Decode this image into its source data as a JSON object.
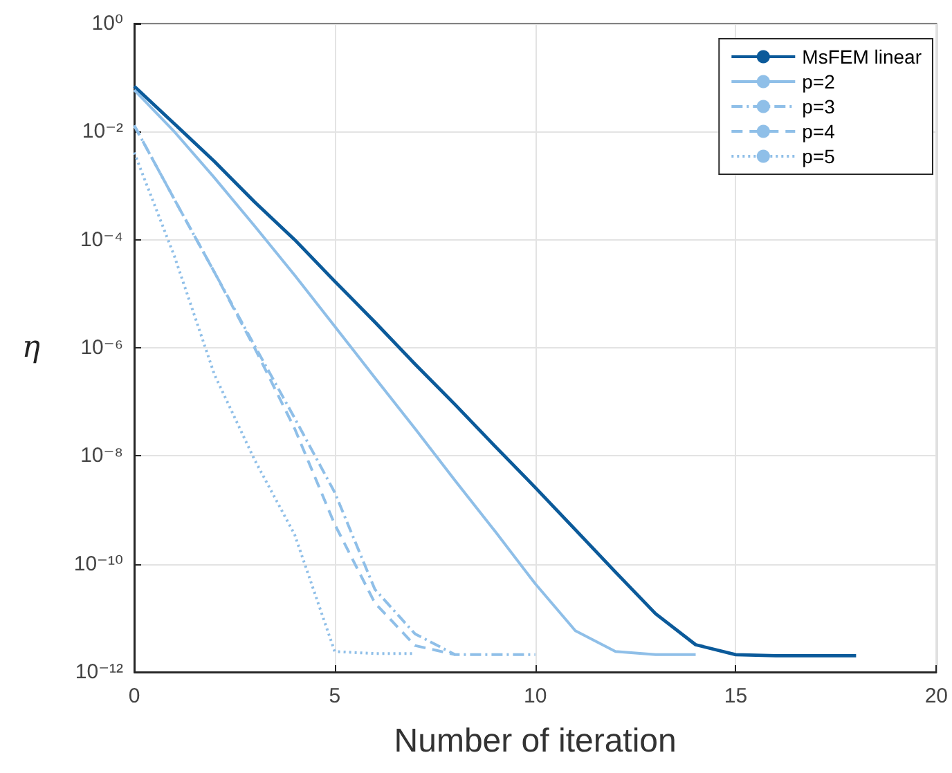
{
  "chart_data": {
    "type": "line",
    "xlabel": "Number of iteration",
    "ylabel": "η",
    "x": [
      0,
      1,
      2,
      3,
      4,
      5,
      6,
      7,
      8,
      9,
      10,
      11,
      12,
      13,
      14,
      15,
      16,
      17,
      18
    ],
    "xlim": [
      0,
      20
    ],
    "xticks": [
      0,
      5,
      10,
      15,
      20
    ],
    "ylim": [
      1e-12,
      1
    ],
    "log": "y",
    "yticks": [
      {
        "value": 1e-12,
        "label": "10⁻¹²"
      },
      {
        "value": 1e-10,
        "label": "10⁻¹⁰"
      },
      {
        "value": 1e-08,
        "label": "10⁻⁸"
      },
      {
        "value": 1e-06,
        "label": "10⁻⁶"
      },
      {
        "value": 0.0001,
        "label": "10⁻⁴"
      },
      {
        "value": 0.01,
        "label": "10⁻²"
      },
      {
        "value": 1,
        "label": "10⁰"
      }
    ],
    "grid": true,
    "legend": "top right",
    "marker": "none",
    "series": [
      {
        "name": "MsFEM linear",
        "color": "#0b5a9a",
        "line_style": "solid",
        "values": [
          0.069,
          0.014,
          0.0028,
          0.0005,
          0.0001,
          1.7e-05,
          3e-06,
          5e-07,
          8.9e-08,
          1.5e-08,
          2.6e-09,
          4.3e-10,
          7.1e-11,
          1.2e-11,
          3.2e-12,
          2.1e-12,
          2e-12,
          2e-12,
          2e-12
        ]
      },
      {
        "name": "p=2",
        "color": "#8fbfe8",
        "line_style": "solid",
        "x": [
          0,
          1,
          2,
          3,
          4,
          5,
          6,
          7,
          8,
          9,
          10,
          11,
          12,
          13,
          14
        ],
        "values": [
          0.059,
          0.01,
          0.0014,
          0.00018,
          2.2e-05,
          2.5e-06,
          2.8e-07,
          3.2e-08,
          3.5e-09,
          4e-10,
          4.3e-11,
          5.8e-12,
          2.4e-12,
          2.1e-12,
          2.1e-12
        ]
      },
      {
        "name": "p=3",
        "color": "#8fbfe8",
        "line_style": "dashdot",
        "x": [
          0,
          1,
          2,
          3,
          4,
          5,
          6,
          7,
          8,
          9,
          10
        ],
        "values": [
          0.013,
          0.00056,
          2.5e-05,
          1.1e-06,
          5e-08,
          2.1e-09,
          3.4e-11,
          5.1e-12,
          2.1e-12,
          2.1e-12,
          2.1e-12
        ]
      },
      {
        "name": "p=4",
        "color": "#8fbfe8",
        "line_style": "dashed",
        "x": [
          0,
          1,
          2,
          3,
          4,
          5,
          6,
          7,
          8
        ],
        "values": [
          0.013,
          0.00056,
          2.5e-05,
          1e-06,
          3.2e-08,
          5.4e-10,
          1.9e-11,
          3.1e-12,
          2.1e-12
        ]
      },
      {
        "name": "p=5",
        "color": "#8fbfe8",
        "line_style": "dotted",
        "x": [
          0,
          1,
          2,
          3,
          4,
          5,
          6,
          7
        ],
        "values": [
          0.0041,
          5e-05,
          3.2e-07,
          8.5e-09,
          3.5e-10,
          2.4e-12,
          2.2e-12,
          2.2e-12
        ]
      }
    ]
  }
}
